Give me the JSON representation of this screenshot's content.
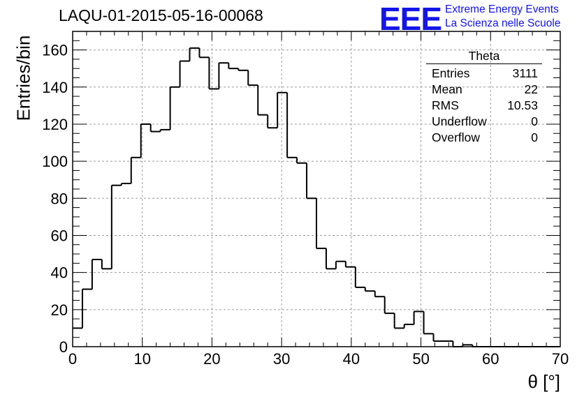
{
  "title": "LAQU-01-2015-05-16-00068",
  "logo": {
    "mark": "EEE",
    "line1": "Extreme Energy Events",
    "line2": "La Scienza nelle Scuole",
    "color": "#1414e8"
  },
  "stats_box": {
    "title": "Theta",
    "rows": [
      {
        "label": "Entries",
        "value": "3111"
      },
      {
        "label": "Mean",
        "value": "22"
      },
      {
        "label": "RMS",
        "value": "10.53"
      },
      {
        "label": "Underflow",
        "value": "0"
      },
      {
        "label": "Overflow",
        "value": "0"
      }
    ]
  },
  "chart_data": {
    "type": "bar",
    "histogram": true,
    "title": "LAQU-01-2015-05-16-00068",
    "xlabel": "θ [°]",
    "ylabel": "Entries/bin",
    "xlim": [
      0,
      70
    ],
    "ylim": [
      0,
      170
    ],
    "x_ticks": [
      0,
      10,
      20,
      30,
      40,
      50,
      60,
      70
    ],
    "y_ticks": [
      0,
      20,
      40,
      60,
      80,
      100,
      120,
      140,
      160
    ],
    "grid": true,
    "bin_width": 1.4,
    "bin_start": 0,
    "values": [
      10,
      31,
      47,
      42,
      87,
      88,
      102,
      120,
      116,
      117,
      140,
      154,
      161,
      156,
      139,
      153,
      150,
      149,
      141,
      125,
      118,
      137,
      102,
      99,
      80,
      53,
      42,
      46,
      43,
      32,
      30,
      27,
      18,
      10,
      12,
      19,
      7,
      3,
      3,
      0,
      1,
      0,
      0,
      0,
      0,
      0,
      0,
      0,
      0,
      0
    ]
  }
}
